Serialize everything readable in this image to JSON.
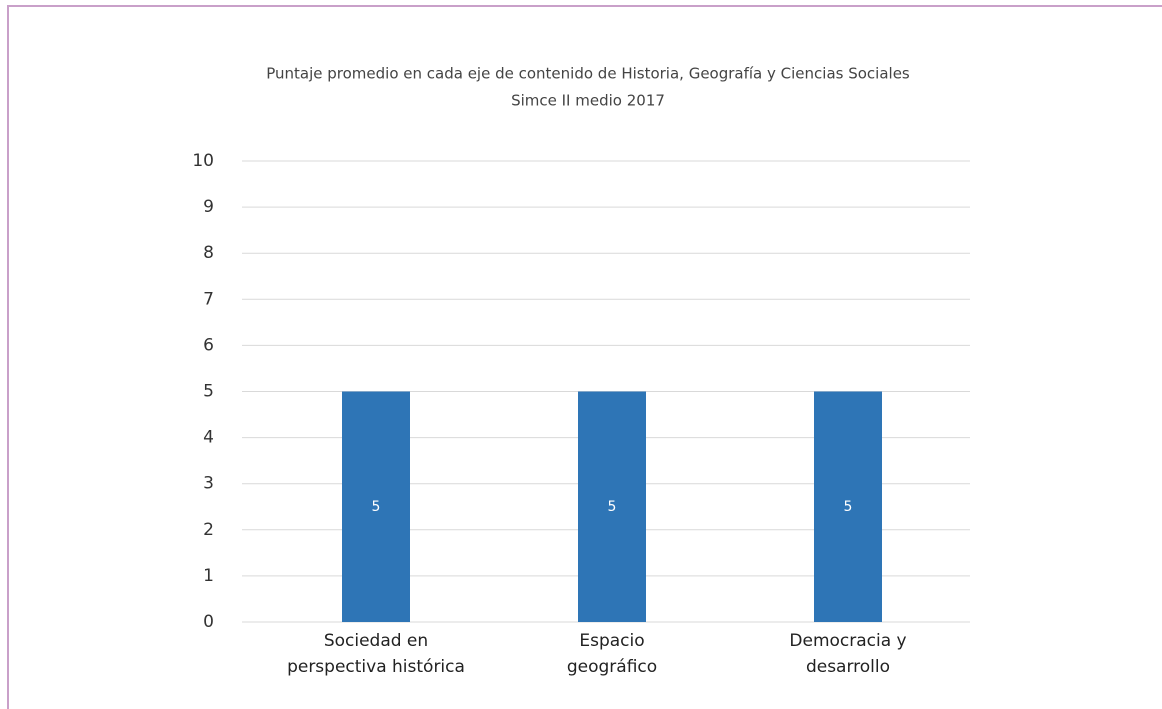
{
  "chart_data": {
    "type": "bar",
    "title": "Puntaje promedio en cada eje de contenido de Historia, Geografía y Ciencias Sociales",
    "subtitle": "Simce II medio 2017",
    "categories": [
      "Sociedad en\nperspectiva histórica",
      "Espacio\ngeográfico",
      "Democracia y\ndesarrollo"
    ],
    "values": [
      5,
      5,
      5
    ],
    "color": "#2e75b6",
    "ylim": [
      0,
      10
    ],
    "yticks": [
      0,
      1,
      2,
      3,
      4,
      5,
      6,
      7,
      8,
      9,
      10
    ],
    "grid": true,
    "data_labels": true
  }
}
